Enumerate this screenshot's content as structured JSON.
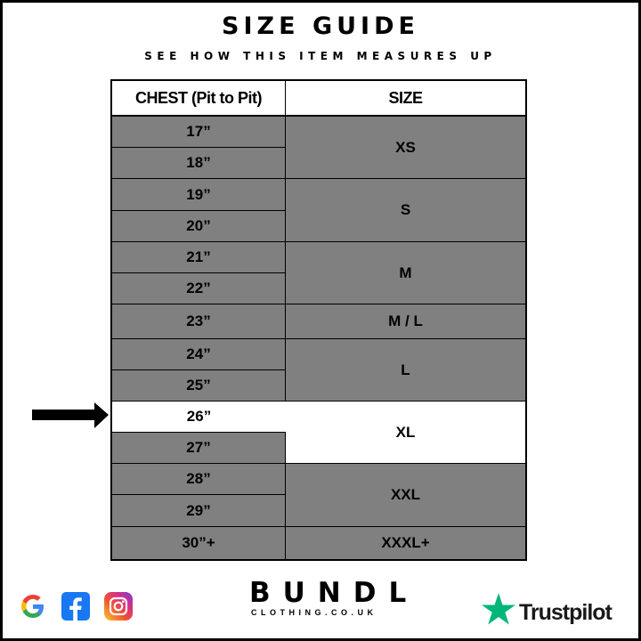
{
  "title": "SIZE GUIDE",
  "subtitle": "SEE HOW THIS ITEM MEASURES UP",
  "table": {
    "headers": [
      "CHEST (Pit to Pit)",
      "SIZE"
    ],
    "chest": [
      "17”",
      "18”",
      "19”",
      "20”",
      "21”",
      "22”",
      "23”",
      "24”",
      "25”",
      "26”",
      "27”",
      "28”",
      "29”",
      "30”+"
    ],
    "sizes": [
      "XS",
      "S",
      "M",
      "M / L",
      "L",
      "XL",
      "XXL",
      "XXXL+"
    ],
    "highlighted": {
      "chest": "26”",
      "size": "XL"
    }
  },
  "footer": {
    "brand": "BUNDL",
    "brand_sub": "CLOTHING.CO.UK",
    "trustpilot": "Trustpilot",
    "social_icons": [
      "google-icon",
      "facebook-icon",
      "instagram-icon"
    ]
  },
  "colors": {
    "cell": "#808080",
    "highlight": "#ffffff",
    "trustpilot": "#00b67a"
  }
}
